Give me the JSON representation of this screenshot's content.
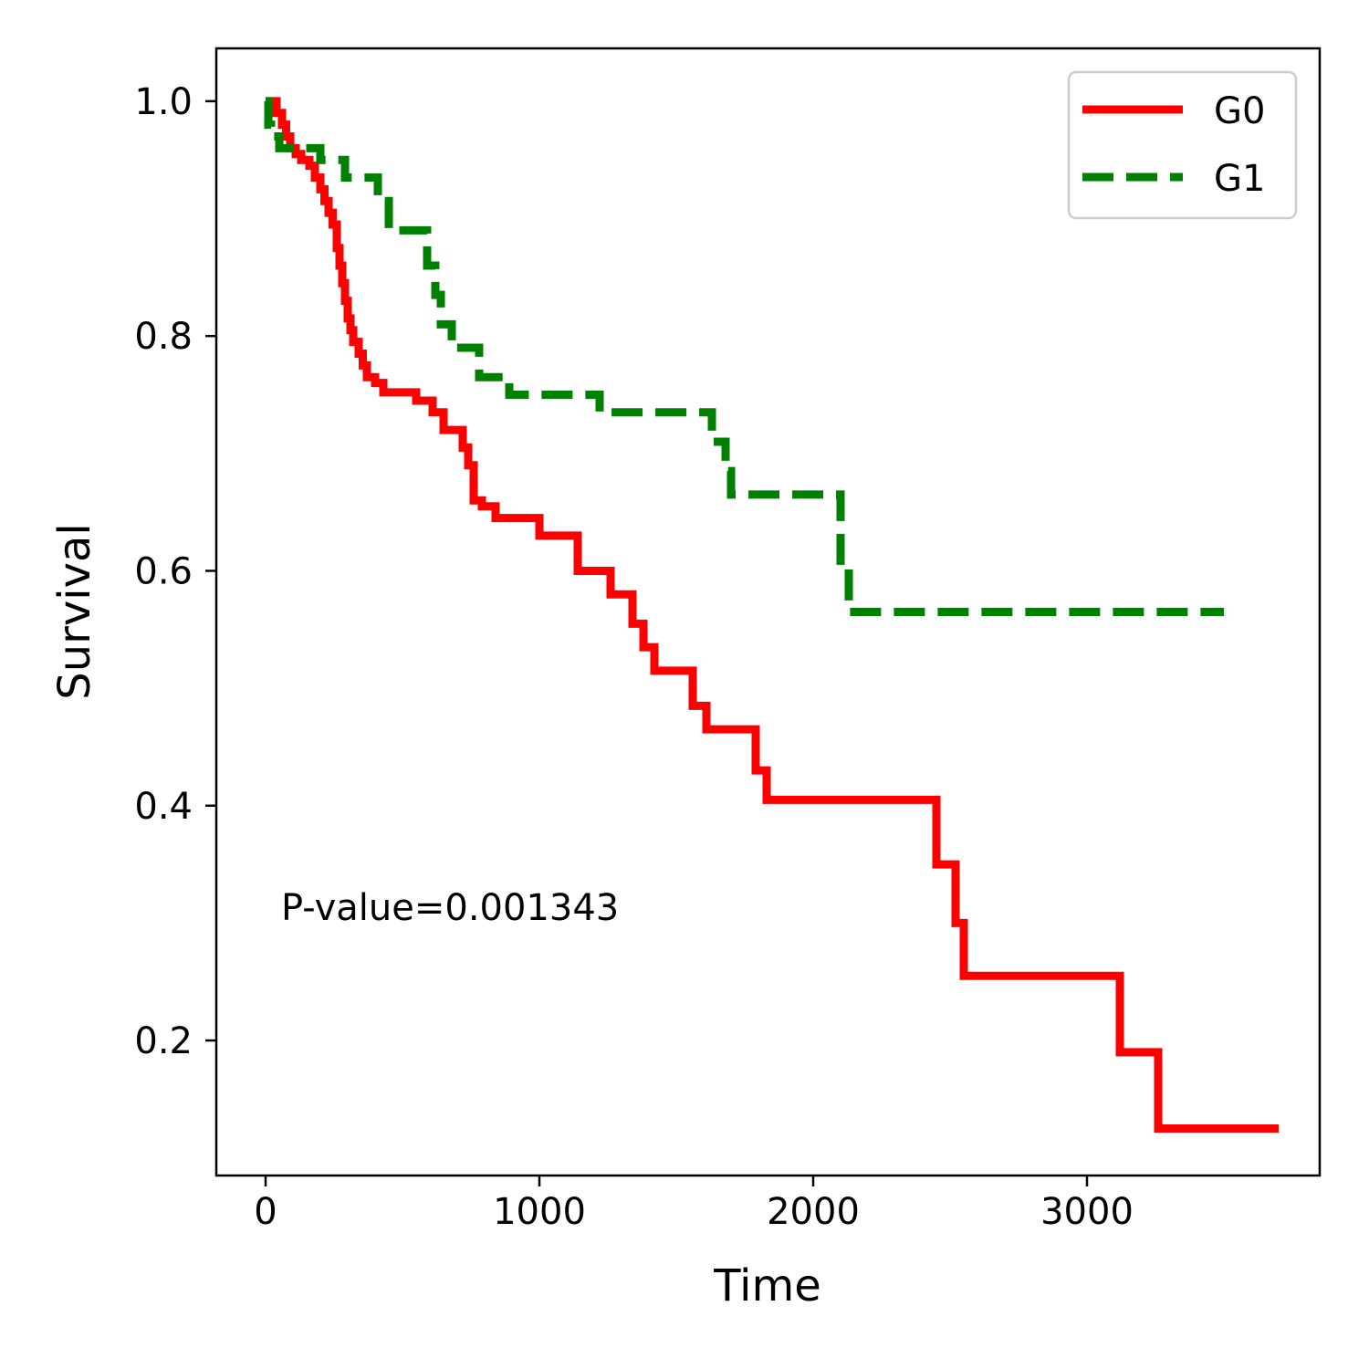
{
  "chart_data": {
    "type": "line",
    "title": "",
    "xlabel": "Time",
    "ylabel": "Survival",
    "xlim": [
      -180,
      3850
    ],
    "ylim": [
      0.085,
      1.045
    ],
    "x_ticks": [
      0,
      1000,
      2000,
      3000
    ],
    "x_tick_labels": [
      "0",
      "1000",
      "2000",
      "3000"
    ],
    "y_ticks": [
      0.2,
      0.4,
      0.6,
      0.8,
      1.0
    ],
    "y_tick_labels": [
      "0.2",
      "0.4",
      "0.6",
      "0.8",
      "1.0"
    ],
    "grid": false,
    "legend_position": "top-right",
    "annotation": "P-value=0.001343",
    "series": [
      {
        "name": "G0",
        "color": "#ff0000",
        "style": "solid",
        "x": [
          0,
          40,
          60,
          75,
          90,
          110,
          130,
          160,
          180,
          200,
          215,
          230,
          245,
          260,
          270,
          280,
          290,
          300,
          310,
          320,
          340,
          355,
          370,
          400,
          430,
          550,
          610,
          650,
          720,
          740,
          760,
          790,
          840,
          1000,
          1140,
          1260,
          1340,
          1380,
          1420,
          1560,
          1610,
          1790,
          1830,
          1880,
          2450,
          2520,
          2550,
          3120,
          3260,
          3700
        ],
        "y": [
          1.0,
          0.99,
          0.98,
          0.97,
          0.96,
          0.955,
          0.95,
          0.945,
          0.935,
          0.925,
          0.915,
          0.905,
          0.895,
          0.875,
          0.86,
          0.845,
          0.83,
          0.815,
          0.805,
          0.795,
          0.785,
          0.775,
          0.765,
          0.76,
          0.752,
          0.745,
          0.735,
          0.72,
          0.705,
          0.69,
          0.66,
          0.655,
          0.645,
          0.63,
          0.6,
          0.58,
          0.555,
          0.535,
          0.515,
          0.485,
          0.465,
          0.43,
          0.405,
          0.405,
          0.35,
          0.3,
          0.255,
          0.19,
          0.125,
          0.125
        ]
      },
      {
        "name": "G1",
        "color": "#008000",
        "style": "dashed",
        "x": [
          0,
          10,
          20,
          50,
          200,
          290,
          410,
          450,
          590,
          620,
          640,
          680,
          780,
          890,
          1220,
          1630,
          1680,
          1700,
          2100,
          2130,
          3500
        ],
        "y": [
          1.0,
          0.98,
          0.97,
          0.96,
          0.95,
          0.935,
          0.915,
          0.89,
          0.86,
          0.835,
          0.81,
          0.79,
          0.765,
          0.75,
          0.735,
          0.71,
          0.685,
          0.665,
          0.605,
          0.565,
          0.565
        ]
      }
    ]
  }
}
